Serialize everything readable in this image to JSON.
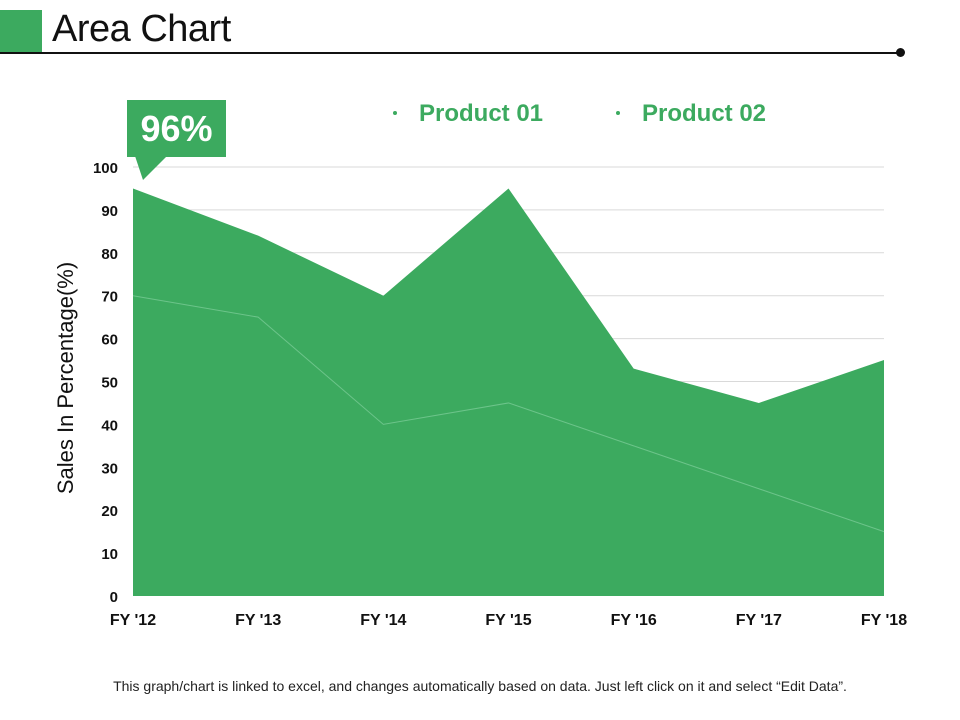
{
  "slide": {
    "title": "Area Chart",
    "callout": "96%",
    "footer": "This graph/chart is linked to excel, and changes automatically  based on data. Just left click on it and select “Edit Data”."
  },
  "colors": {
    "accent": "#3caa5f",
    "series_line": "#6cc48a",
    "grid": "#d9d9d9",
    "text": "#111111"
  },
  "chart_data": {
    "type": "area",
    "categories": [
      "FY '12",
      "FY '13",
      "FY '14",
      "FY '15",
      "FY '16",
      "FY '17",
      "FY '18"
    ],
    "series": [
      {
        "name": "Product 01",
        "values": [
          95,
          84,
          70,
          95,
          53,
          45,
          55
        ]
      },
      {
        "name": "Product 02",
        "values": [
          70,
          65,
          40,
          45,
          35,
          25,
          15
        ]
      }
    ],
    "ylabel": "Sales In Percentage(%)",
    "xlabel": "",
    "ylim": [
      0,
      100
    ],
    "yticks": [
      0,
      10,
      20,
      30,
      40,
      50,
      60,
      70,
      80,
      90,
      100
    ],
    "grid": true,
    "legend_position": "top"
  }
}
